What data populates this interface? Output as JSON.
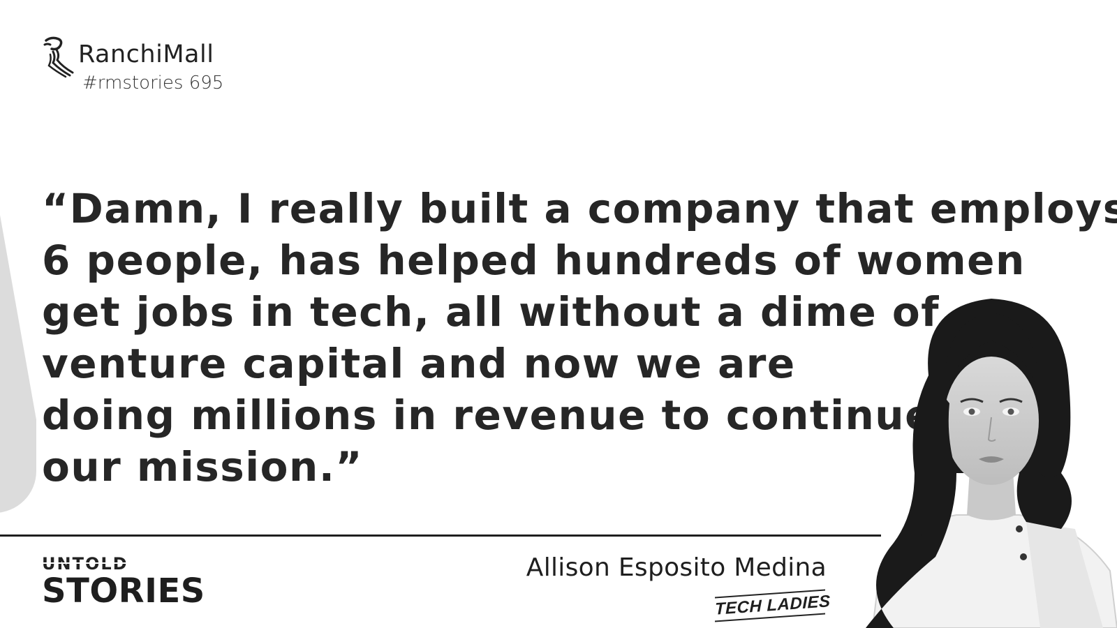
{
  "brand": {
    "name": "RanchiMall",
    "hashtag": "#rmstories 695"
  },
  "quote": {
    "lines": [
      "“Damn, I really built a company that employs",
      "6 people, has helped hundreds of women",
      "get jobs in tech, all without a dime of",
      "venture capital and now we are",
      "doing millions in revenue to continue",
      "our mission.”"
    ]
  },
  "series": {
    "top": "UNTOLD",
    "bottom": "STORIES"
  },
  "person": {
    "name": "Allison Esposito Medina",
    "company": "TECH LADIES"
  },
  "colors": {
    "text": "#262626",
    "panel": "#dcdcdc",
    "background": "#ffffff"
  },
  "icons": {
    "logo": "ranchimall-logo-icon",
    "portrait": "person-portrait-icon"
  }
}
